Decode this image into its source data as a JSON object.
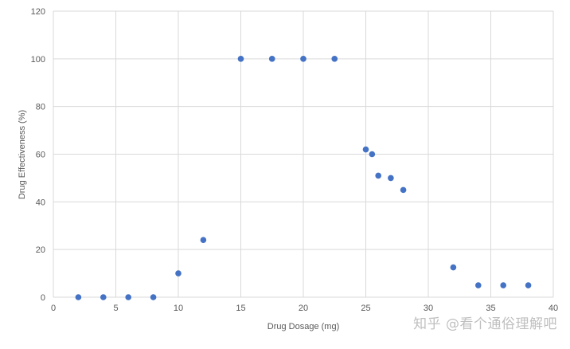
{
  "chart_data": {
    "type": "scatter",
    "title": "",
    "xlabel": "Drug Dosage (mg)",
    "ylabel": "Drug Effectiveness (%)",
    "xlim": [
      0,
      40
    ],
    "ylim": [
      0,
      120
    ],
    "xticks": [
      0,
      5,
      10,
      15,
      20,
      25,
      30,
      35,
      40
    ],
    "yticks": [
      0,
      20,
      40,
      60,
      80,
      100,
      120
    ],
    "grid": true,
    "legend": "none",
    "marker_color": "#4472c4",
    "points": [
      {
        "x": 2,
        "y": 0
      },
      {
        "x": 4,
        "y": 0
      },
      {
        "x": 6,
        "y": 0
      },
      {
        "x": 8,
        "y": 0
      },
      {
        "x": 10,
        "y": 10
      },
      {
        "x": 12,
        "y": 24
      },
      {
        "x": 15,
        "y": 100
      },
      {
        "x": 17.5,
        "y": 100
      },
      {
        "x": 20,
        "y": 100
      },
      {
        "x": 22.5,
        "y": 100
      },
      {
        "x": 25,
        "y": 62
      },
      {
        "x": 25.5,
        "y": 60
      },
      {
        "x": 26,
        "y": 51
      },
      {
        "x": 27,
        "y": 50
      },
      {
        "x": 28,
        "y": 45
      },
      {
        "x": 32,
        "y": 12.5
      },
      {
        "x": 34,
        "y": 5
      },
      {
        "x": 36,
        "y": 5
      },
      {
        "x": 38,
        "y": 5
      }
    ]
  },
  "watermark": "知乎 @看个通俗理解吧"
}
